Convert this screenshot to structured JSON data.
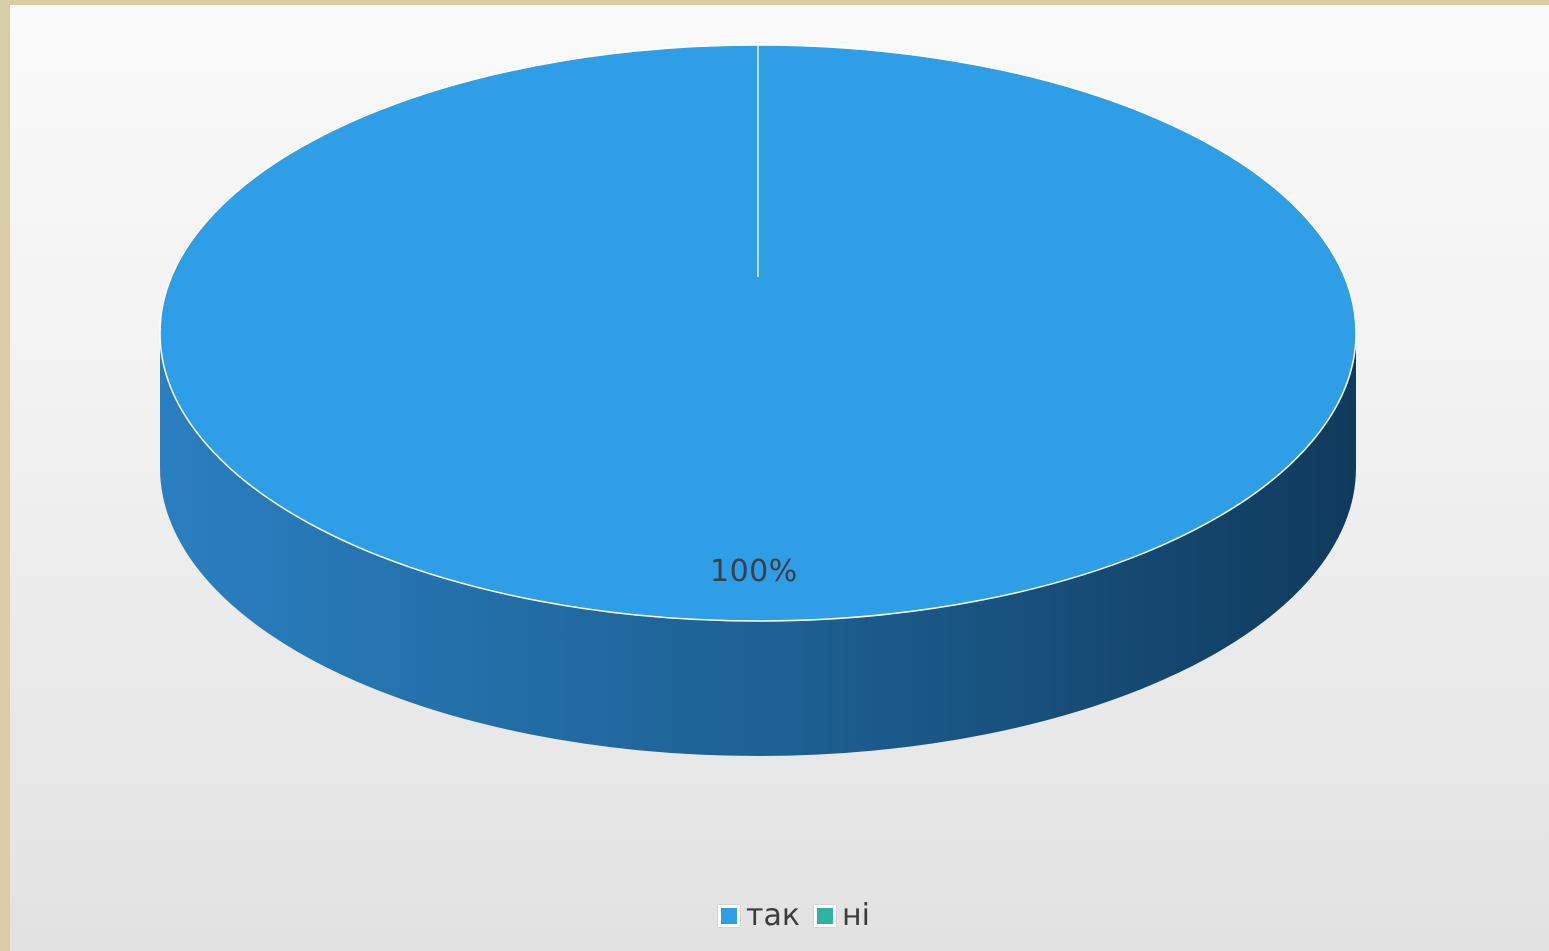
{
  "chart_data": {
    "type": "pie",
    "style": "3d",
    "categories": [
      "так",
      "ні"
    ],
    "values": [
      100,
      0
    ],
    "data_labels": [
      "100%",
      ""
    ],
    "legend": [
      {
        "label": "так",
        "color": "#2e9ee6"
      },
      {
        "label": "ні",
        "color": "#2bb5a0"
      }
    ],
    "legend_position": "bottom",
    "colors": {
      "slice_top": "#2e9ee6",
      "slice_side_light": "#2a7fc0",
      "slice_side_dark": "#103a5c"
    }
  }
}
